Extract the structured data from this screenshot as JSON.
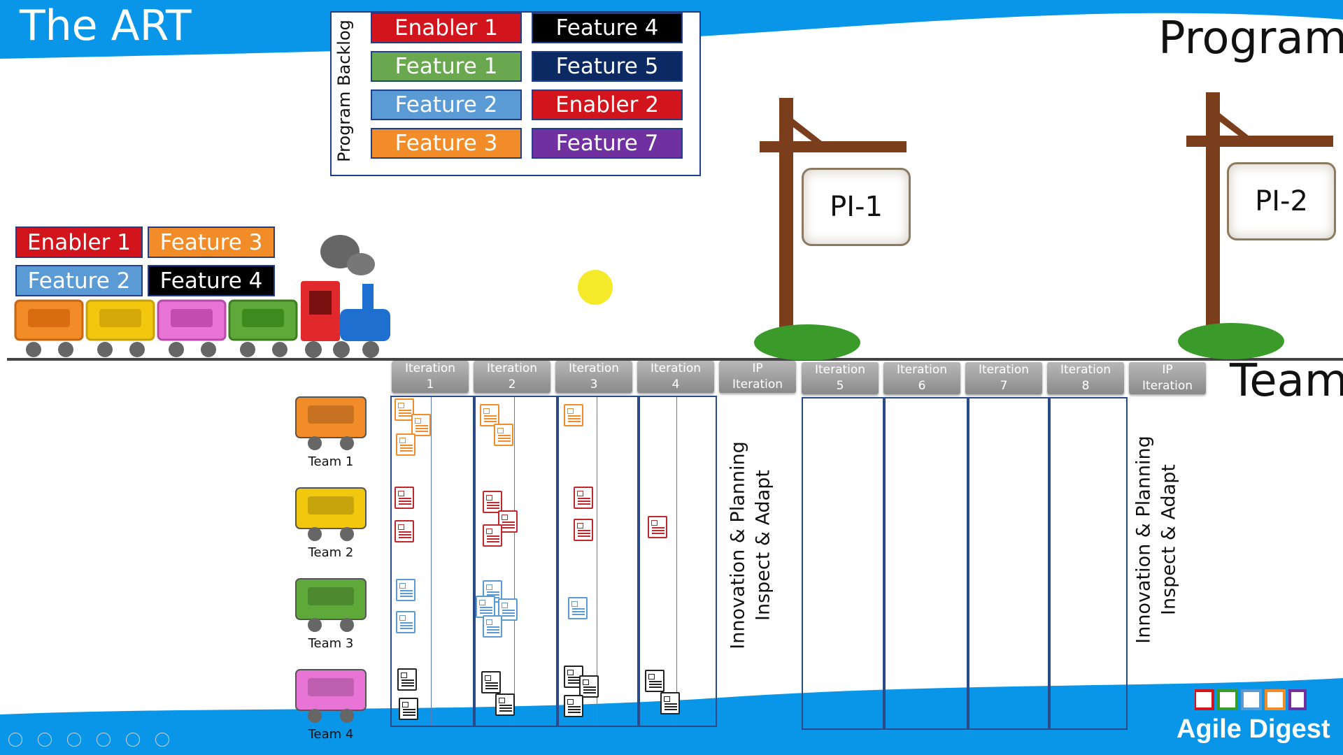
{
  "title": "The ART",
  "program_label": "Program",
  "team_label": "Team",
  "backlog": {
    "label": "Program Backlog",
    "items": [
      {
        "label": "Enabler 1",
        "color": "#d2151d"
      },
      {
        "label": "Feature 4",
        "color": "#000000"
      },
      {
        "label": "Feature 1",
        "color": "#6aa84f"
      },
      {
        "label": "Feature 5",
        "color": "#0b2a63"
      },
      {
        "label": "Feature 2",
        "color": "#5b9bd5"
      },
      {
        "label": "Enabler 2",
        "color": "#d2151d"
      },
      {
        "label": "Feature 3",
        "color": "#f28c28"
      },
      {
        "label": "Feature 7",
        "color": "#7030a0"
      }
    ]
  },
  "train_cargo": [
    {
      "label": "Enabler 1",
      "color": "#d2151d"
    },
    {
      "label": "Feature 3",
      "color": "#f28c28"
    },
    {
      "label": "Feature 2",
      "color": "#5b9bd5"
    },
    {
      "label": "Feature 4",
      "color": "#000000"
    }
  ],
  "signs": [
    {
      "label": "PI-1"
    },
    {
      "label": "PI-2"
    }
  ],
  "iterations": [
    {
      "label": "Iteration\n1"
    },
    {
      "label": "Iteration\n2"
    },
    {
      "label": "Iteration\n3"
    },
    {
      "label": "Iteration\n4"
    },
    {
      "label": "IP\nIteration"
    },
    {
      "label": "Iteration\n5"
    },
    {
      "label": "Iteration\n6"
    },
    {
      "label": "Iteration\n7"
    },
    {
      "label": "Iteration\n8"
    },
    {
      "label": "IP\nIteration"
    }
  ],
  "ip_text": {
    "line1": "Innovation & Planning",
    "line2": "Inspect & Adapt"
  },
  "teams": [
    {
      "label": "Team 1",
      "color": "#f28c28"
    },
    {
      "label": "Team 2",
      "color": "#f2c80f"
    },
    {
      "label": "Team 3",
      "color": "#5fa83a"
    },
    {
      "label": "Team 4",
      "color": "#e874d6"
    }
  ],
  "story_colors": {
    "team1": "#f28c28",
    "team2": "#c0282d",
    "team3": "#5b9bd5",
    "team4": "#222222"
  },
  "logo": "Agile Digest",
  "colors": {
    "brand_blue": "#0a96e8"
  }
}
